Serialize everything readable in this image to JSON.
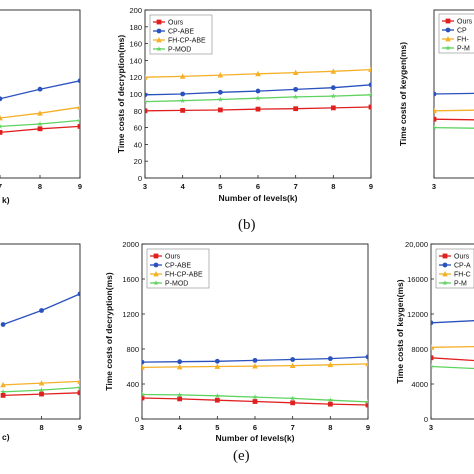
{
  "captions": [
    "(b)",
    "(e)"
  ],
  "colors": {
    "Ours": "#e02020",
    "CP-ABE": "#2a52be",
    "FH-CP-ABE": "#f5b027",
    "P-MOD": "#5fd35f"
  },
  "chart_data": [
    {
      "id": "top-left-partial",
      "type": "line",
      "x": [
        7,
        8,
        9
      ],
      "xtick_labels": [
        "7",
        "8",
        "9"
      ],
      "xlabel": "k)",
      "series": [
        {
          "name": "CP-ABE",
          "values": [
            126,
            134,
            141
          ]
        },
        {
          "name": "FH-CP-ABE",
          "values": [
            110,
            114,
            119
          ]
        },
        {
          "name": "P-MOD",
          "values": [
            103,
            105,
            108
          ]
        },
        {
          "name": "Ours",
          "values": [
            98,
            101,
            103
          ]
        }
      ],
      "ylim": [
        60,
        200
      ]
    },
    {
      "id": "top-middle",
      "type": "line",
      "x": [
        3,
        4,
        5,
        6,
        7,
        8,
        9
      ],
      "xtick_labels": [
        "3",
        "4",
        "5",
        "6",
        "7",
        "8",
        "9"
      ],
      "yticks": [
        0,
        20,
        40,
        60,
        80,
        100,
        120,
        140,
        160,
        180,
        200
      ],
      "ylim": [
        0,
        200
      ],
      "ylabel": "Time costs of decryption(ms)",
      "xlabel": "Number of levels(k)",
      "legend_position": "top-left",
      "series": [
        {
          "name": "Ours",
          "values": [
            80,
            80.5,
            81,
            82,
            82.5,
            83.5,
            84.5
          ]
        },
        {
          "name": "CP-ABE",
          "values": [
            99,
            100,
            102,
            103.5,
            105.5,
            107.5,
            111
          ]
        },
        {
          "name": "FH-CP-ABE",
          "values": [
            120,
            121,
            122.5,
            124,
            125.5,
            127,
            129
          ]
        },
        {
          "name": "P-MOD",
          "values": [
            91,
            92,
            93.5,
            95,
            96.5,
            97.5,
            99
          ]
        }
      ]
    },
    {
      "id": "top-right-partial",
      "type": "line",
      "x": [
        3,
        4
      ],
      "xtick_labels": [
        "3",
        "4"
      ],
      "ylabel": "Time costs of keygen(ms)",
      "legend_entries": [
        "Ours",
        "CP",
        "FH-",
        "P-M"
      ],
      "series": [
        {
          "name": "CP-ABE",
          "values": [
            1000,
            1010
          ]
        },
        {
          "name": "FH-CP-ABE",
          "values": [
            800,
            810
          ]
        },
        {
          "name": "Ours",
          "values": [
            700,
            690
          ]
        },
        {
          "name": "P-MOD",
          "values": [
            600,
            590
          ]
        }
      ],
      "ylim": [
        0,
        2000
      ]
    },
    {
      "id": "bottom-left-partial",
      "type": "line",
      "x": [
        7,
        8,
        9
      ],
      "xtick_labels": [
        "8",
        "9"
      ],
      "xlabel": "c)",
      "series": [
        {
          "name": "CP-ABE",
          "values": [
            1080,
            1240,
            1430
          ]
        },
        {
          "name": "FH-CP-ABE",
          "values": [
            390,
            410,
            430
          ]
        },
        {
          "name": "P-MOD",
          "values": [
            310,
            330,
            360
          ]
        },
        {
          "name": "Ours",
          "values": [
            270,
            285,
            300
          ]
        }
      ],
      "ylim": [
        0,
        2000
      ]
    },
    {
      "id": "bottom-middle",
      "type": "line",
      "x": [
        3,
        4,
        5,
        6,
        7,
        8,
        9
      ],
      "xtick_labels": [
        "3",
        "4",
        "5",
        "6",
        "7",
        "8",
        "9"
      ],
      "yticks": [
        0,
        400,
        800,
        1200,
        1600,
        2000
      ],
      "ylim": [
        0,
        2000
      ],
      "ylabel": "Time costs of decryption(ms)",
      "xlabel": "Number of levels(k)",
      "legend_position": "top-left",
      "series": [
        {
          "name": "Ours",
          "values": [
            240,
            230,
            215,
            200,
            185,
            170,
            160
          ]
        },
        {
          "name": "CP-ABE",
          "values": [
            650,
            655,
            660,
            670,
            680,
            690,
            710
          ]
        },
        {
          "name": "FH-CP-ABE",
          "values": [
            590,
            595,
            600,
            605,
            610,
            620,
            630
          ]
        },
        {
          "name": "P-MOD",
          "values": [
            280,
            275,
            265,
            250,
            235,
            215,
            195
          ]
        }
      ]
    },
    {
      "id": "bottom-right-partial",
      "type": "line",
      "x": [
        3,
        4
      ],
      "xtick_labels": [
        "3",
        "4"
      ],
      "yticks": [
        0,
        4000,
        8000,
        12000,
        16000,
        20000
      ],
      "ytick_labels": [
        "0",
        "4000",
        "8000",
        "12000",
        "16000",
        "20,000"
      ],
      "ylim": [
        0,
        20000
      ],
      "ylabel": "Time costs of keygen(ms)",
      "legend_entries": [
        "Ours",
        "CP-A",
        "FH-C",
        "P-M"
      ],
      "series": [
        {
          "name": "CP-ABE",
          "values": [
            11000,
            11300
          ]
        },
        {
          "name": "FH-CP-ABE",
          "values": [
            8200,
            8300
          ]
        },
        {
          "name": "Ours",
          "values": [
            7000,
            6600
          ]
        },
        {
          "name": "P-MOD",
          "values": [
            6000,
            5700
          ]
        }
      ]
    }
  ]
}
